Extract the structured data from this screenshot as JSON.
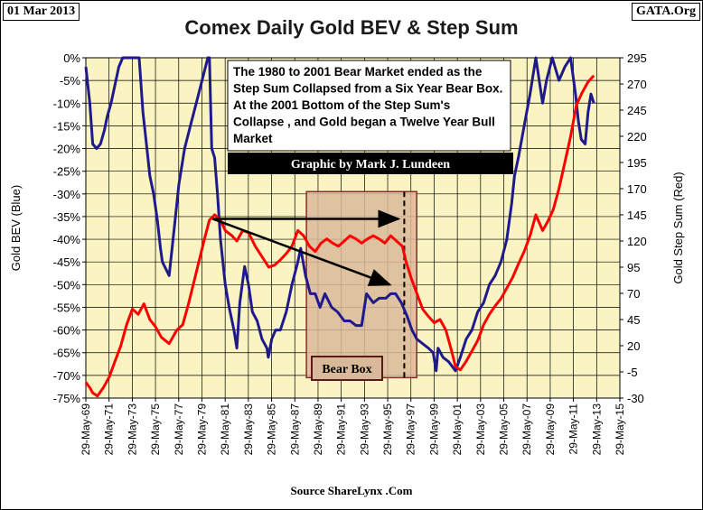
{
  "header": {
    "date": "01 Mar 2013",
    "title": "Comex Daily Gold BEV &  Step Sum",
    "site": "GATA.Org"
  },
  "footer": {
    "source": "Source ShareLynx .Com"
  },
  "annotation": {
    "lines": [
      "The 1980 to 2001 Bear Market ended as the",
      "Step Sum Collapsed from a Six Year Bear Box.",
      "At the  2001 Bottom of the Step Sum's",
      "Collapse , and Gold began a Twelve Year Bull",
      "Market"
    ],
    "credit": "Graphic by Mark J. Lundeen",
    "box_label": "Bear Box"
  },
  "colors": {
    "plot_bg": "#faf4c2",
    "bev": "#1f1a8c",
    "stepsum": "#ff0000",
    "box_fill": "#d9b99a",
    "box_border": "#8b2b2b"
  },
  "chart_data": {
    "type": "line",
    "xlabel": "",
    "ylabel_left": "Gold BEV (Blue)",
    "ylabel_right": "Gold Step Sum (Red)",
    "x_range": [
      "1969-05-29",
      "2015-05-29"
    ],
    "x_ticks": [
      "29-May-69",
      "29-May-71",
      "29-May-73",
      "29-May-75",
      "29-May-77",
      "29-May-79",
      "29-May-81",
      "29-May-83",
      "29-May-85",
      "29-May-87",
      "29-May-89",
      "29-May-91",
      "29-May-93",
      "29-May-95",
      "29-May-97",
      "29-May-99",
      "29-May-01",
      "29-May-03",
      "29-May-05",
      "29-May-07",
      "29-May-09",
      "29-May-11",
      "29-May-13",
      "29-May-15"
    ],
    "y_left_ticks": [
      "0%",
      "-5%",
      "-10%",
      "-15%",
      "-20%",
      "-25%",
      "-30%",
      "-35%",
      "-40%",
      "-45%",
      "-50%",
      "-55%",
      "-60%",
      "-65%",
      "-70%",
      "-75%"
    ],
    "y_left_range": [
      -75,
      0
    ],
    "y_right_ticks": [
      "295",
      "270",
      "245",
      "220",
      "195",
      "170",
      "145",
      "120",
      "95",
      "70",
      "45",
      "20",
      "-5",
      "-30"
    ],
    "y_right_range": [
      -30,
      295
    ],
    "grid": true,
    "bear_box": {
      "x": [
        "1988-05-29",
        "1997-11-29"
      ],
      "y_left": [
        -70.5,
        -29.5
      ]
    },
    "dashed_line_x": "1996-11-01",
    "arrows": [
      {
        "from": [
          "1980-05-01",
          -35.5
        ],
        "to": [
          "1996-05-01",
          -35.5
        ]
      },
      {
        "from": [
          "1980-05-01",
          -35.5
        ],
        "to": [
          "1995-08-01",
          -50.0
        ]
      }
    ],
    "series": [
      {
        "name": "",
        "axis": "left",
        "points": [
          [
            "1969-05-29",
            -2
          ],
          [
            "1969-10-01",
            -10
          ],
          [
            "1970-01-01",
            -19
          ],
          [
            "1970-05-01",
            -20
          ],
          [
            "1970-09-01",
            -19
          ],
          [
            "1971-01-01",
            -16
          ],
          [
            "1971-04-01",
            -13
          ],
          [
            "1971-08-01",
            -10
          ],
          [
            "1971-12-01",
            -6
          ],
          [
            "1972-04-01",
            -2
          ],
          [
            "1972-08-01",
            0
          ],
          [
            "1973-06-01",
            0
          ],
          [
            "1974-01-01",
            0
          ],
          [
            "1974-05-01",
            -12
          ],
          [
            "1974-09-01",
            -20
          ],
          [
            "1974-12-01",
            -26
          ],
          [
            "1975-04-01",
            -30
          ],
          [
            "1975-08-01",
            -36
          ],
          [
            "1975-11-01",
            -42
          ],
          [
            "1976-01-01",
            -45
          ],
          [
            "1976-08-01",
            -48
          ],
          [
            "1977-01-01",
            -38
          ],
          [
            "1977-06-01",
            -28
          ],
          [
            "1977-12-01",
            -20
          ],
          [
            "1978-06-01",
            -15
          ],
          [
            "1978-12-01",
            -10
          ],
          [
            "1979-06-01",
            -5
          ],
          [
            "1979-12-01",
            0
          ],
          [
            "1980-01-21",
            0
          ],
          [
            "1980-04-01",
            -20
          ],
          [
            "1980-07-01",
            -22
          ],
          [
            "1980-10-01",
            -30
          ],
          [
            "1981-01-01",
            -40
          ],
          [
            "1981-06-01",
            -50
          ],
          [
            "1981-10-01",
            -55
          ],
          [
            "1982-03-01",
            -60
          ],
          [
            "1982-06-01",
            -64
          ],
          [
            "1982-09-01",
            -54
          ],
          [
            "1983-02-01",
            -46
          ],
          [
            "1983-06-01",
            -50
          ],
          [
            "1983-10-01",
            -56
          ],
          [
            "1984-03-01",
            -58
          ],
          [
            "1984-08-01",
            -62
          ],
          [
            "1985-01-01",
            -64
          ],
          [
            "1985-02-15",
            -66
          ],
          [
            "1985-06-01",
            -62
          ],
          [
            "1985-10-01",
            -60
          ],
          [
            "1986-03-01",
            -60
          ],
          [
            "1986-09-01",
            -56
          ],
          [
            "1987-03-01",
            -50
          ],
          [
            "1987-09-01",
            -45
          ],
          [
            "1987-12-01",
            -42
          ],
          [
            "1988-05-01",
            -48
          ],
          [
            "1988-10-01",
            -52
          ],
          [
            "1989-03-01",
            -52
          ],
          [
            "1989-08-01",
            -55
          ],
          [
            "1990-01-01",
            -52
          ],
          [
            "1990-08-01",
            -55
          ],
          [
            "1991-02-01",
            -56
          ],
          [
            "1991-09-01",
            -58
          ],
          [
            "1992-03-01",
            -58
          ],
          [
            "1992-09-01",
            -59
          ],
          [
            "1993-03-01",
            -59
          ],
          [
            "1993-08-01",
            -52
          ],
          [
            "1994-03-01",
            -54
          ],
          [
            "1994-09-01",
            -53
          ],
          [
            "1995-04-01",
            -53
          ],
          [
            "1995-09-01",
            -52
          ],
          [
            "1996-02-01",
            -52
          ],
          [
            "1996-08-01",
            -54
          ],
          [
            "1997-02-01",
            -57
          ],
          [
            "1997-07-01",
            -60
          ],
          [
            "1997-12-01",
            -62
          ],
          [
            "1998-06-01",
            -63
          ],
          [
            "1998-12-01",
            -64
          ],
          [
            "1999-05-01",
            -65
          ],
          [
            "1999-08-01",
            -69
          ],
          [
            "1999-10-01",
            -64
          ],
          [
            "2000-03-01",
            -66
          ],
          [
            "2000-09-01",
            -67
          ],
          [
            "2001-04-01",
            -69
          ],
          [
            "2001-09-01",
            -66
          ],
          [
            "2002-03-01",
            -62
          ],
          [
            "2002-09-01",
            -60
          ],
          [
            "2003-03-01",
            -56
          ],
          [
            "2003-09-01",
            -54
          ],
          [
            "2004-03-01",
            -50
          ],
          [
            "2004-09-01",
            -48
          ],
          [
            "2005-03-01",
            -45
          ],
          [
            "2005-09-01",
            -40
          ],
          [
            "2006-02-01",
            -32
          ],
          [
            "2006-05-01",
            -26
          ],
          [
            "2006-09-01",
            -22
          ],
          [
            "2007-03-01",
            -15
          ],
          [
            "2007-09-01",
            -8
          ],
          [
            "2008-03-01",
            0
          ],
          [
            "2008-10-01",
            -10
          ],
          [
            "2009-02-01",
            -5
          ],
          [
            "2009-08-01",
            0
          ],
          [
            "2010-03-01",
            -5
          ],
          [
            "2010-09-01",
            -2
          ],
          [
            "2011-03-01",
            0
          ],
          [
            "2011-08-01",
            -8
          ],
          [
            "2011-11-01",
            -14
          ],
          [
            "2012-02-01",
            -18
          ],
          [
            "2012-06-01",
            -19
          ],
          [
            "2012-09-01",
            -12
          ],
          [
            "2012-12-01",
            -8
          ],
          [
            "2013-03-01",
            -10
          ]
        ]
      },
      {
        "name": "",
        "axis": "right",
        "points": [
          [
            "1969-05-29",
            -15
          ],
          [
            "1969-10-01",
            -20
          ],
          [
            "1970-01-01",
            -25
          ],
          [
            "1970-06-01",
            -28
          ],
          [
            "1970-12-01",
            -20
          ],
          [
            "1971-06-01",
            -10
          ],
          [
            "1971-12-01",
            5
          ],
          [
            "1972-06-01",
            20
          ],
          [
            "1972-12-01",
            40
          ],
          [
            "1973-06-01",
            55
          ],
          [
            "1973-12-01",
            50
          ],
          [
            "1974-06-01",
            60
          ],
          [
            "1974-12-01",
            45
          ],
          [
            "1975-06-01",
            38
          ],
          [
            "1975-12-01",
            28
          ],
          [
            "1976-08-01",
            22
          ],
          [
            "1977-04-01",
            35
          ],
          [
            "1977-10-01",
            40
          ],
          [
            "1978-04-01",
            60
          ],
          [
            "1978-12-01",
            90
          ],
          [
            "1979-08-01",
            120
          ],
          [
            "1980-01-21",
            140
          ],
          [
            "1980-07-01",
            145
          ],
          [
            "1981-01-01",
            140
          ],
          [
            "1981-06-01",
            130
          ],
          [
            "1982-01-01",
            125
          ],
          [
            "1982-06-01",
            120
          ],
          [
            "1982-12-01",
            130
          ],
          [
            "1983-06-01",
            128
          ],
          [
            "1984-01-01",
            115
          ],
          [
            "1984-08-01",
            105
          ],
          [
            "1985-03-01",
            95
          ],
          [
            "1985-09-01",
            97
          ],
          [
            "1986-03-01",
            102
          ],
          [
            "1986-09-01",
            108
          ],
          [
            "1987-03-01",
            115
          ],
          [
            "1987-09-01",
            130
          ],
          [
            "1988-03-01",
            125
          ],
          [
            "1988-09-01",
            115
          ],
          [
            "1989-03-01",
            110
          ],
          [
            "1989-09-01",
            118
          ],
          [
            "1990-03-01",
            122
          ],
          [
            "1990-09-01",
            118
          ],
          [
            "1991-03-01",
            115
          ],
          [
            "1991-09-01",
            120
          ],
          [
            "1992-03-01",
            125
          ],
          [
            "1992-09-01",
            122
          ],
          [
            "1993-03-01",
            118
          ],
          [
            "1993-09-01",
            122
          ],
          [
            "1994-03-01",
            125
          ],
          [
            "1994-09-01",
            122
          ],
          [
            "1995-03-01",
            118
          ],
          [
            "1995-09-01",
            125
          ],
          [
            "1996-03-01",
            120
          ],
          [
            "1996-09-01",
            115
          ],
          [
            "1997-01-01",
            100
          ],
          [
            "1997-06-01",
            85
          ],
          [
            "1997-12-01",
            70
          ],
          [
            "1998-06-01",
            55
          ],
          [
            "1998-12-01",
            48
          ],
          [
            "1999-06-01",
            42
          ],
          [
            "1999-12-01",
            45
          ],
          [
            "2000-06-01",
            35
          ],
          [
            "2000-12-01",
            15
          ],
          [
            "2001-04-01",
            0
          ],
          [
            "2001-09-01",
            -3
          ],
          [
            "2002-03-01",
            5
          ],
          [
            "2002-09-01",
            15
          ],
          [
            "2003-03-01",
            25
          ],
          [
            "2003-09-01",
            40
          ],
          [
            "2004-03-01",
            50
          ],
          [
            "2004-09-01",
            58
          ],
          [
            "2005-03-01",
            65
          ],
          [
            "2005-09-01",
            75
          ],
          [
            "2006-03-01",
            85
          ],
          [
            "2006-09-01",
            98
          ],
          [
            "2007-03-01",
            110
          ],
          [
            "2007-09-01",
            125
          ],
          [
            "2008-03-01",
            145
          ],
          [
            "2008-10-01",
            130
          ],
          [
            "2009-03-01",
            138
          ],
          [
            "2009-09-01",
            150
          ],
          [
            "2010-03-01",
            170
          ],
          [
            "2010-09-01",
            195
          ],
          [
            "2011-03-01",
            220
          ],
          [
            "2011-09-01",
            250
          ],
          [
            "2012-03-01",
            262
          ],
          [
            "2012-09-01",
            272
          ],
          [
            "2013-03-01",
            278
          ]
        ]
      }
    ]
  }
}
